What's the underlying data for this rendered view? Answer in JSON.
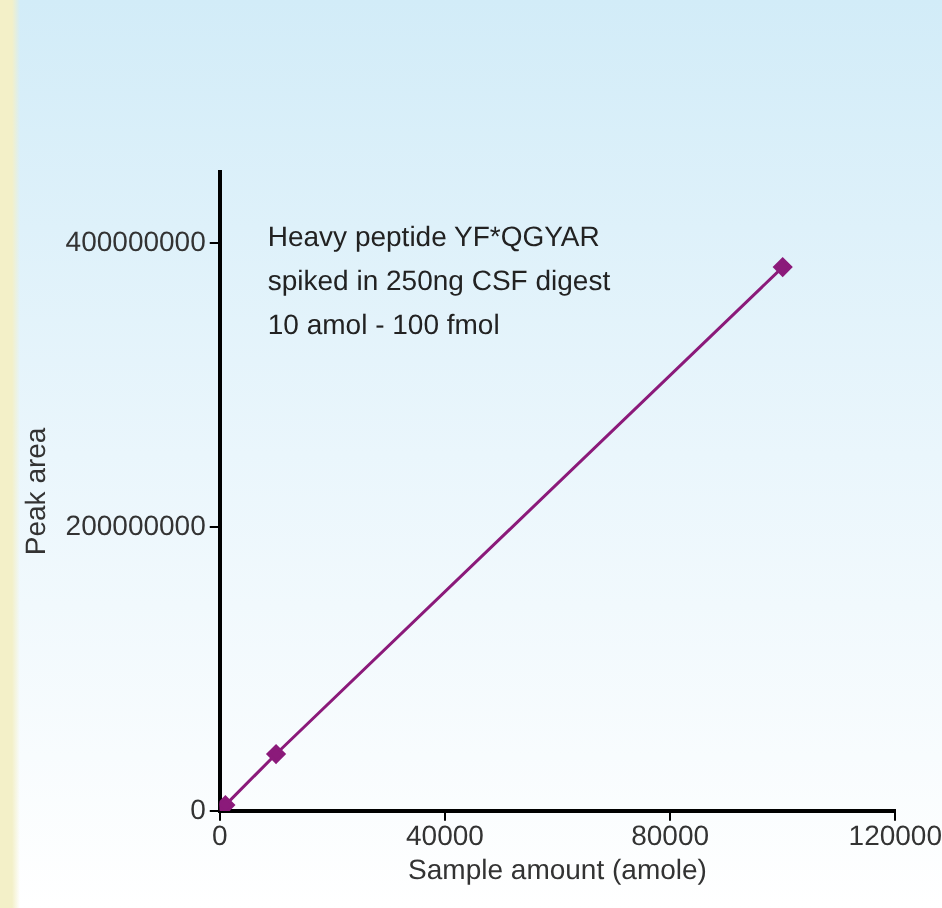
{
  "chart_data": {
    "type": "line",
    "xlabel": "Sample amount (amole)",
    "ylabel": "Peak area",
    "annotations": [
      "Heavy peptide YF*QGYAR",
      "spiked in 250ng CSF digest",
      "10 amol - 100 fmol"
    ],
    "x": [
      10,
      100,
      1000,
      10000,
      100000
    ],
    "series": [
      {
        "color": "#8b1a7a",
        "values": [
          0,
          0,
          4000000,
          40000000,
          383000000
        ]
      }
    ],
    "xlim": [
      0,
      120000
    ],
    "xticks": [
      0,
      40000,
      80000,
      120000
    ],
    "ylim": [
      0,
      450000000
    ],
    "yticks": [
      0,
      200000000,
      400000000
    ],
    "grid": false,
    "legend": false,
    "marker": "diamond",
    "line_style": "solid"
  }
}
